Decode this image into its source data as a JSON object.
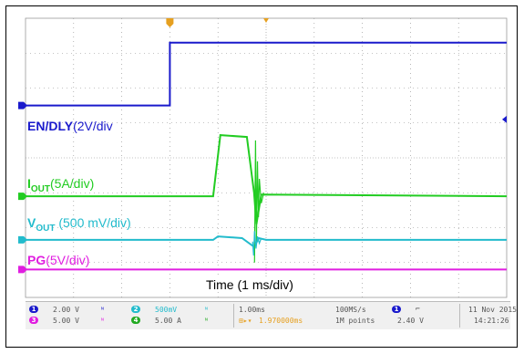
{
  "chart_data": {
    "type": "line",
    "title": "",
    "xlabel": "Time (1 ms/div)",
    "ylabel": "",
    "xlim": [
      0,
      10
    ],
    "ylim": [
      0,
      8
    ],
    "x_unit": "ms",
    "grid": true,
    "series": [
      {
        "name": "EN/DLY(2V/div)",
        "color": "#1a1acc",
        "x": [
          0,
          3.0,
          3.0,
          10
        ],
        "y": [
          5.5,
          5.5,
          7.3,
          7.3
        ]
      },
      {
        "name": "IOUT(5A/div)",
        "color": "#22cc22",
        "x": [
          0,
          3.9,
          4.05,
          4.6,
          4.75,
          4.8,
          4.9,
          10
        ],
        "y": [
          2.9,
          2.9,
          4.65,
          4.6,
          3.0,
          2.1,
          2.95,
          2.9
        ]
      },
      {
        "name": "VOUT (500 mV/div)",
        "color": "#22bbcc",
        "x": [
          0,
          3.9,
          4.0,
          4.5,
          4.75,
          4.85,
          5.0,
          10
        ],
        "y": [
          1.65,
          1.65,
          1.75,
          1.7,
          1.45,
          1.7,
          1.65,
          1.65
        ]
      },
      {
        "name": "PG(5V/div)",
        "color": "#e01ee0",
        "x": [
          0,
          10
        ],
        "y": [
          0.8,
          0.8
        ]
      }
    ]
  },
  "labels": {
    "en_bold": "EN/DLY",
    "en_rest": "(2V/div",
    "iout_main": "I",
    "iout_sub": "OUT",
    "iout_rest": "(5A/div)",
    "vout_main": "V",
    "vout_sub": "OUT",
    "vout_rest": " (500 mV/div)",
    "pg_bold": "PG",
    "pg_rest": "(5V/div)",
    "time": "Time (1 ms/div)"
  },
  "status": {
    "ch1_num": "1",
    "ch1_scale": "2.00 V",
    "ch2_num": "2",
    "ch2_scale": "500mV",
    "ch3_num": "3",
    "ch3_scale": "5.00 V",
    "ch4_num": "4",
    "ch4_scale": "5.00 A",
    "timebase": "1.00ms",
    "trigger_pos": "1.970000ms",
    "sample_rate": "100MS/s",
    "record_length": "1M points",
    "trig_ch": "1",
    "trig_level": "2.40 V",
    "date": "11 Nov 2015",
    "time": "14:21:26"
  },
  "colors": {
    "ch1": "#1a1acc",
    "ch2": "#22bbcc",
    "ch3": "#e01ee0",
    "ch4": "#22cc22",
    "trigger_marker": "#e6a020",
    "grid": "#888888"
  }
}
